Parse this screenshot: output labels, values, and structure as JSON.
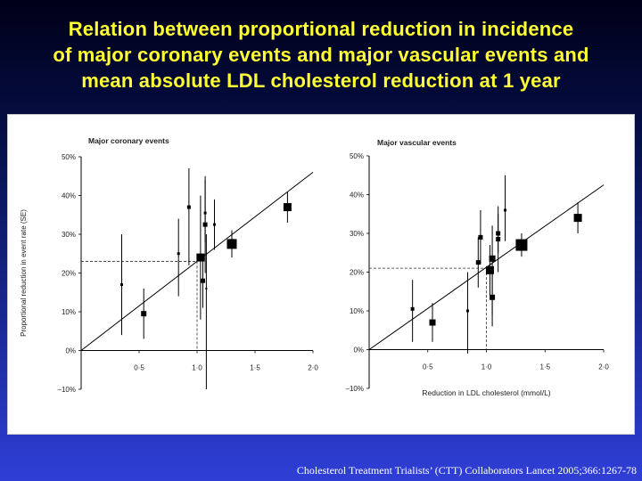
{
  "slide": {
    "title_lines": [
      "Relation between proportional reduction in incidence",
      "of major coronary events and major vascular events and",
      "mean absolute LDL cholesterol reduction at 1 year"
    ],
    "citation": "Cholesterol Treatment Trialists’ (CTT) Collaborators  Lancet 2005;366:1267-78"
  },
  "chart_data": [
    {
      "type": "scatter",
      "title": "Major coronary events",
      "ylabel": "Proportional reduction in event rate (SE)",
      "xlabel": "",
      "xlim": [
        0,
        2.0
      ],
      "ylim": [
        -10,
        50
      ],
      "x_ticks": [
        "0·5",
        "1·0",
        "1·5",
        "2·0"
      ],
      "y_ticks": [
        "50%",
        "40%",
        "30%",
        "20%",
        "10%",
        "0%",
        "–10%"
      ],
      "regression_line": {
        "x": [
          0,
          2.0
        ],
        "y": [
          0,
          46
        ]
      },
      "reference": {
        "x": 1.0,
        "y": 23
      },
      "points": [
        {
          "x": 0.35,
          "y": 17,
          "lo": 4,
          "hi": 30,
          "size": 3
        },
        {
          "x": 0.54,
          "y": 9.5,
          "lo": 3,
          "hi": 16,
          "size": 6
        },
        {
          "x": 0.84,
          "y": 25,
          "lo": 14,
          "hi": 34,
          "size": 3
        },
        {
          "x": 0.93,
          "y": 37,
          "lo": 22,
          "hi": 47,
          "size": 4
        },
        {
          "x": 1.03,
          "y": 24,
          "lo": 8,
          "hi": 40,
          "size": 9
        },
        {
          "x": 1.05,
          "y": 18,
          "lo": 11,
          "hi": 25,
          "size": 5
        },
        {
          "x": 1.07,
          "y": 35.5,
          "lo": 28,
          "hi": 44,
          "size": 3
        },
        {
          "x": 1.07,
          "y": 32.5,
          "lo": 20,
          "hi": 45,
          "size": 5
        },
        {
          "x": 1.08,
          "y": 16,
          "lo": -10,
          "hi": 30,
          "size": 2
        },
        {
          "x": 1.15,
          "y": 32.5,
          "lo": 26,
          "hi": 39,
          "size": 3
        },
        {
          "x": 1.3,
          "y": 27.5,
          "lo": 24,
          "hi": 31,
          "size": 11
        },
        {
          "x": 1.78,
          "y": 37,
          "lo": 33,
          "hi": 41,
          "size": 9
        }
      ]
    },
    {
      "type": "scatter",
      "title": "Major vascular events",
      "ylabel": "",
      "xlabel": "Reduction in LDL cholesterol (mmol/L)",
      "xlim": [
        0,
        2.0
      ],
      "ylim": [
        -10,
        50
      ],
      "x_ticks": [
        "0·5",
        "1·0",
        "1·5",
        "2·0"
      ],
      "y_ticks": [
        "50%",
        "40%",
        "30%",
        "20%",
        "10%",
        "0%",
        "–10%"
      ],
      "regression_line": {
        "x": [
          0,
          2.0
        ],
        "y": [
          0,
          42.5
        ]
      },
      "reference": {
        "x": 1.0,
        "y": 21
      },
      "points": [
        {
          "x": 0.37,
          "y": 10.5,
          "lo": 2,
          "hi": 18,
          "size": 4
        },
        {
          "x": 0.54,
          "y": 7,
          "lo": 2,
          "hi": 12,
          "size": 7
        },
        {
          "x": 0.84,
          "y": 10,
          "lo": -1,
          "hi": 20,
          "size": 3
        },
        {
          "x": 0.93,
          "y": 22.5,
          "lo": 16,
          "hi": 29,
          "size": 5
        },
        {
          "x": 0.95,
          "y": 29,
          "lo": 22,
          "hi": 36,
          "size": 5
        },
        {
          "x": 1.03,
          "y": 20.5,
          "lo": 14,
          "hi": 27,
          "size": 9
        },
        {
          "x": 1.05,
          "y": 23.5,
          "lo": 9,
          "hi": 32,
          "size": 7
        },
        {
          "x": 1.05,
          "y": 13.5,
          "lo": 6,
          "hi": 21,
          "size": 6
        },
        {
          "x": 1.1,
          "y": 30,
          "lo": 25,
          "hi": 35,
          "size": 5
        },
        {
          "x": 1.1,
          "y": 28.5,
          "lo": 20,
          "hi": 37,
          "size": 5
        },
        {
          "x": 1.16,
          "y": 36,
          "lo": 28,
          "hi": 45,
          "size": 3
        },
        {
          "x": 1.3,
          "y": 27,
          "lo": 24,
          "hi": 30,
          "size": 13
        },
        {
          "x": 1.78,
          "y": 34,
          "lo": 30,
          "hi": 38,
          "size": 9
        }
      ]
    }
  ]
}
